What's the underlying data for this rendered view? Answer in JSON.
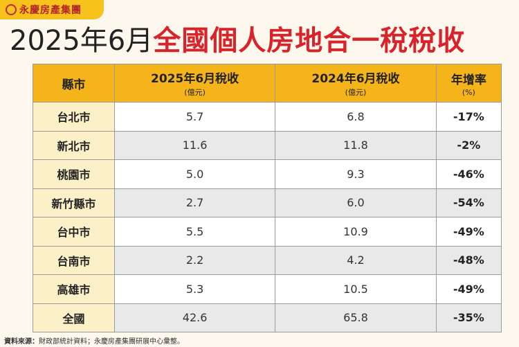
{
  "header": {
    "logo": "永慶房產集團",
    "title_prefix": "2025年6月",
    "title_main": "全國個人房地合一稅稅收"
  },
  "table": {
    "columns": [
      {
        "title": "縣市"
      },
      {
        "title": "2025年6月稅收",
        "unit": "(億元)"
      },
      {
        "title": "2024年6月稅收",
        "unit": "(億元)"
      },
      {
        "title": "年增率",
        "unit": "(%)"
      }
    ],
    "rows": [
      [
        "台北市",
        "5.7",
        "6.8",
        "-17%"
      ],
      [
        "新北市",
        "11.6",
        "11.8",
        "-2%"
      ],
      [
        "桃園市",
        "5.0",
        "9.3",
        "-46%"
      ],
      [
        "新竹縣市",
        "2.7",
        "6.0",
        "-54%"
      ],
      [
        "台中市",
        "5.5",
        "10.9",
        "-49%"
      ],
      [
        "台南市",
        "2.2",
        "4.2",
        "-48%"
      ],
      [
        "高雄市",
        "5.3",
        "10.5",
        "-49%"
      ],
      [
        "全國",
        "42.6",
        "65.8",
        "-35%"
      ]
    ]
  },
  "footer": {
    "source_label": "資料來源：",
    "source_text": "財政部統計資料；永慶房產集團研展中心彙整。"
  }
}
